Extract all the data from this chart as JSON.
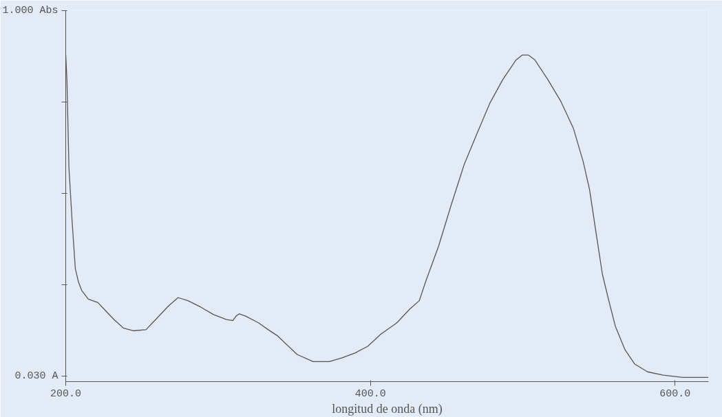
{
  "chart_data": {
    "type": "line",
    "xlabel": "longitud de onda (nm)",
    "x": [
      200.0,
      200.8,
      202.1,
      204.2,
      206.3,
      208.4,
      210.5,
      214.8,
      221.1,
      225.3,
      231.6,
      238.0,
      244.3,
      252.7,
      259.1,
      267.5,
      273.8,
      280.2,
      288.6,
      297.0,
      305.5,
      309.7,
      311.8,
      313.9,
      318.1,
      326.6,
      332.9,
      339.2,
      351.9,
      362.4,
      373.0,
      381.4,
      389.9,
      398.3,
      406.8,
      417.3,
      425.7,
      432.1,
      436.3,
      444.7,
      453.2,
      461.6,
      470.0,
      478.5,
      486.9,
      495.4,
      499.6,
      503.8,
      508.0,
      516.5,
      524.9,
      533.3,
      539.7,
      543.9,
      548.1,
      552.3,
      556.5,
      560.8,
      567.1,
      573.4,
      581.9,
      592.4,
      605.1,
      621.9
    ],
    "series": [
      {
        "color": "#555555",
        "values": [
          0.882,
          0.816,
          0.583,
          0.44,
          0.315,
          0.279,
          0.257,
          0.234,
          0.225,
          0.207,
          0.18,
          0.157,
          0.15,
          0.153,
          0.18,
          0.216,
          0.238,
          0.23,
          0.213,
          0.193,
          0.18,
          0.177,
          0.189,
          0.195,
          0.189,
          0.171,
          0.153,
          0.136,
          0.087,
          0.068,
          0.068,
          0.078,
          0.091,
          0.109,
          0.141,
          0.171,
          0.207,
          0.23,
          0.281,
          0.374,
          0.486,
          0.592,
          0.674,
          0.755,
          0.817,
          0.868,
          0.882,
          0.882,
          0.869,
          0.817,
          0.76,
          0.687,
          0.599,
          0.524,
          0.411,
          0.3,
          0.23,
          0.162,
          0.1,
          0.062,
          0.041,
          0.032,
          0.026,
          0.026
        ]
      }
    ],
    "xlim": [
      200,
      622
    ],
    "ylim": [
      0.015,
      1.0
    ],
    "xticks": [
      {
        "value": 200,
        "label": "200.0"
      },
      {
        "value": 400,
        "label": "400.0"
      },
      {
        "value": 600,
        "label": "600.0"
      }
    ],
    "yticks": [
      {
        "value": 0.03,
        "label": "0.030 A"
      },
      {
        "value": 0.2725,
        "label": null
      },
      {
        "value": 0.515,
        "label": null
      },
      {
        "value": 0.7575,
        "label": null
      },
      {
        "value": 1.0,
        "label": "1.000 Abs"
      }
    ],
    "grid": false,
    "marker": "none",
    "line_style": "solid"
  }
}
